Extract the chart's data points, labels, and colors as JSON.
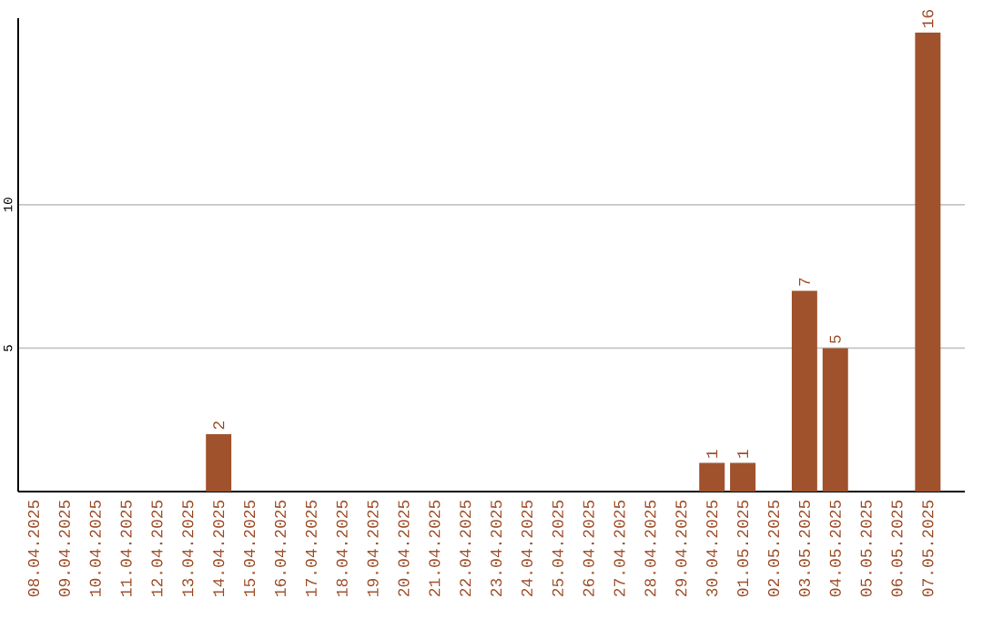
{
  "chart_data": {
    "type": "bar",
    "categories": [
      "08.04.2025",
      "09.04.2025",
      "10.04.2025",
      "11.04.2025",
      "12.04.2025",
      "13.04.2025",
      "14.04.2025",
      "15.04.2025",
      "16.04.2025",
      "17.04.2025",
      "18.04.2025",
      "19.04.2025",
      "20.04.2025",
      "21.04.2025",
      "22.04.2025",
      "23.04.2025",
      "24.04.2025",
      "25.04.2025",
      "26.04.2025",
      "27.04.2025",
      "28.04.2025",
      "29.04.2025",
      "30.04.2025",
      "01.05.2025",
      "02.05.2025",
      "03.05.2025",
      "04.05.2025",
      "05.05.2025",
      "06.05.2025",
      "07.05.2025"
    ],
    "values": [
      0,
      0,
      0,
      0,
      0,
      0,
      2,
      0,
      0,
      0,
      0,
      0,
      0,
      0,
      0,
      0,
      0,
      0,
      0,
      0,
      0,
      0,
      1,
      1,
      0,
      7,
      5,
      0,
      0,
      16
    ],
    "value_labels": [
      null,
      null,
      null,
      null,
      null,
      null,
      "2",
      null,
      null,
      null,
      null,
      null,
      null,
      null,
      null,
      null,
      null,
      null,
      null,
      null,
      null,
      null,
      "1",
      "1",
      null,
      "7",
      "5",
      null,
      null,
      "16"
    ],
    "color": "#a0522d",
    "ylim": [
      0,
      16.5
    ],
    "yticks": [
      5,
      10
    ],
    "grid": "y"
  }
}
